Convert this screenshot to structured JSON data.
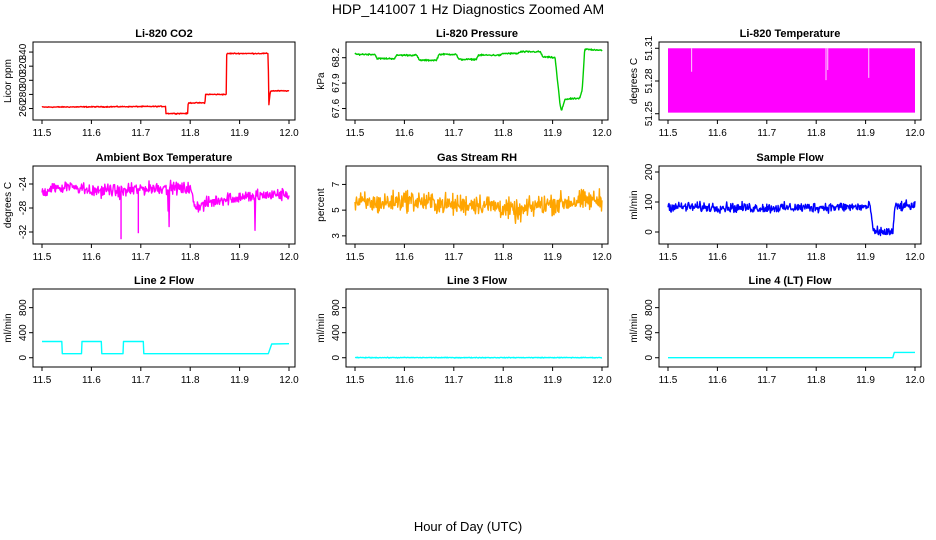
{
  "page": {
    "title": "HDP_141007  1 Hz Diagnostics Zoomed AM",
    "xlabel": "Hour of Day (UTC)"
  },
  "chart_data": [
    {
      "id": "co2",
      "type": "line",
      "title": "Li-820 CO2",
      "ylabel": "Licor ppm",
      "color": "#ff0000",
      "xlim": [
        11.5,
        12.0
      ],
      "ylim": [
        248,
        350
      ],
      "xticks": [
        11.5,
        11.6,
        11.7,
        11.8,
        11.9,
        12.0
      ],
      "yticks": [
        260,
        280,
        300,
        320,
        340
      ],
      "series": [
        {
          "name": "CO2",
          "noise": 0.6,
          "x": [
            11.5,
            11.75,
            11.751,
            11.795,
            11.796,
            11.83,
            11.831,
            11.873,
            11.874,
            11.958,
            11.959,
            11.962,
            11.965,
            12.0
          ],
          "y": [
            262,
            263,
            253,
            253,
            268,
            268,
            280,
            280,
            338,
            338,
            263,
            284,
            285,
            285
          ]
        }
      ]
    },
    {
      "id": "pressure",
      "type": "line",
      "title": "Li-820 Pressure",
      "ylabel": "kPa",
      "color": "#00cc00",
      "xlim": [
        11.5,
        12.0
      ],
      "ylim": [
        67.5,
        68.35
      ],
      "xticks": [
        11.5,
        11.6,
        11.7,
        11.8,
        11.9,
        12.0
      ],
      "yticks": [
        67.6,
        67.9,
        68.2
      ],
      "series": [
        {
          "name": "Pressure",
          "noise": 0.008,
          "x": [
            11.5,
            11.54,
            11.545,
            11.58,
            11.585,
            11.625,
            11.63,
            11.665,
            11.67,
            11.705,
            11.71,
            11.745,
            11.75,
            11.795,
            11.8,
            11.83,
            11.835,
            11.875,
            11.88,
            11.905,
            11.915,
            11.918,
            11.925,
            11.955,
            11.96,
            11.965,
            12.0
          ],
          "y": [
            68.24,
            68.24,
            68.19,
            68.19,
            68.23,
            68.23,
            68.17,
            68.17,
            68.24,
            68.24,
            68.18,
            68.18,
            68.23,
            68.23,
            68.25,
            68.25,
            68.27,
            68.27,
            68.21,
            68.2,
            67.65,
            67.57,
            67.71,
            67.72,
            67.82,
            68.3,
            68.29
          ]
        }
      ]
    },
    {
      "id": "licor_temp",
      "type": "line",
      "title": "Li-820 Temperature",
      "ylabel": "degrees C",
      "color": "#ff00ff",
      "xlim": [
        11.5,
        12.0
      ],
      "ylim": [
        51.247,
        51.313
      ],
      "xticks": [
        11.5,
        11.6,
        11.7,
        11.8,
        11.9,
        12.0
      ],
      "yticks": [
        51.25,
        51.28,
        51.31
      ],
      "series": [
        {
          "name": "Temperature",
          "style": "band",
          "low": 51.251,
          "high": 51.31,
          "x": [
            11.5,
            12.0
          ],
          "y": [
            51.251,
            51.31
          ]
        }
      ]
    },
    {
      "id": "box_temp",
      "type": "line",
      "title": "Ambient Box Temperature",
      "ylabel": "degrees C",
      "color": "#ff00ff",
      "xlim": [
        11.5,
        12.0
      ],
      "ylim": [
        -33.5,
        -21.5
      ],
      "xticks": [
        11.5,
        11.6,
        11.7,
        11.8,
        11.9,
        12.0
      ],
      "yticks": [
        -32,
        -28,
        -24
      ],
      "series": [
        {
          "name": "Box Temp",
          "noise": 0.9,
          "x": [
            11.5,
            11.52,
            11.55,
            11.58,
            11.6,
            11.64,
            11.66,
            11.7,
            11.75,
            11.8,
            11.81,
            11.83,
            11.86,
            11.9,
            11.95,
            12.0
          ],
          "y": [
            -25.5,
            -24.8,
            -24.2,
            -24.6,
            -25.2,
            -25.0,
            -25.4,
            -24.8,
            -24.6,
            -24.8,
            -27.8,
            -27.4,
            -26.6,
            -26.2,
            -25.9,
            -25.7
          ]
        }
      ]
    },
    {
      "id": "rh",
      "type": "line",
      "title": "Gas Stream RH",
      "ylabel": "percent",
      "color": "#ffa500",
      "xlim": [
        11.5,
        12.0
      ],
      "ylim": [
        2.6,
        8.2
      ],
      "xticks": [
        11.5,
        11.6,
        11.7,
        11.8,
        11.9,
        12.0
      ],
      "yticks": [
        3,
        5,
        7
      ],
      "series": [
        {
          "name": "RH",
          "noise": 0.7,
          "x": [
            11.5,
            11.55,
            11.6,
            11.65,
            11.7,
            11.75,
            11.8,
            11.83,
            11.87,
            11.9,
            11.95,
            12.0
          ],
          "y": [
            5.6,
            5.5,
            5.8,
            5.6,
            5.4,
            5.5,
            5.2,
            4.8,
            5.4,
            5.5,
            5.7,
            5.8
          ]
        }
      ]
    },
    {
      "id": "sample_flow",
      "type": "line",
      "title": "Sample Flow",
      "ylabel": "ml/min",
      "color": "#0000ff",
      "xlim": [
        11.5,
        12.0
      ],
      "ylim": [
        -30,
        210
      ],
      "xticks": [
        11.5,
        11.6,
        11.7,
        11.8,
        11.9,
        12.0
      ],
      "yticks": [
        0,
        100,
        200
      ],
      "series": [
        {
          "name": "Sample Flow",
          "noise": 14,
          "x": [
            11.5,
            11.6,
            11.7,
            11.8,
            11.91,
            11.915,
            11.955,
            11.96,
            12.0
          ],
          "y": [
            85,
            82,
            80,
            82,
            84,
            0,
            0,
            85,
            87
          ]
        }
      ]
    },
    {
      "id": "line2",
      "type": "line",
      "title": "Line 2 Flow",
      "ylabel": "ml/min",
      "color": "#00ffff",
      "xlim": [
        11.5,
        12.0
      ],
      "ylim": [
        -100,
        1050
      ],
      "xticks": [
        11.5,
        11.6,
        11.7,
        11.8,
        11.9,
        12.0
      ],
      "yticks": [
        0,
        400,
        800
      ],
      "series": [
        {
          "name": "Line 2",
          "noise": 0,
          "x": [
            11.5,
            11.54,
            11.541,
            11.58,
            11.581,
            11.62,
            11.621,
            11.664,
            11.665,
            11.705,
            11.706,
            11.958,
            11.965,
            12.0
          ],
          "y": [
            260,
            260,
            65,
            65,
            260,
            260,
            65,
            65,
            260,
            260,
            65,
            65,
            220,
            225
          ]
        }
      ]
    },
    {
      "id": "line3",
      "type": "line",
      "title": "Line 3 Flow",
      "ylabel": "ml/min",
      "color": "#00ffff",
      "xlim": [
        11.5,
        12.0
      ],
      "ylim": [
        -100,
        1050
      ],
      "xticks": [
        11.5,
        11.6,
        11.7,
        11.8,
        11.9,
        12.0
      ],
      "yticks": [
        0,
        400,
        800
      ],
      "series": [
        {
          "name": "Line 3",
          "noise": 5,
          "x": [
            11.5,
            12.0
          ],
          "y": [
            2,
            2
          ]
        }
      ]
    },
    {
      "id": "line4",
      "type": "line",
      "title": "Line 4 (LT) Flow",
      "ylabel": "ml/min",
      "color": "#00ffff",
      "xlim": [
        11.5,
        12.0
      ],
      "ylim": [
        -100,
        1050
      ],
      "xticks": [
        11.5,
        11.6,
        11.7,
        11.8,
        11.9,
        12.0
      ],
      "yticks": [
        0,
        400,
        800
      ],
      "series": [
        {
          "name": "Line 4 (LT)",
          "noise": 0,
          "x": [
            11.5,
            11.955,
            11.958,
            12.0
          ],
          "y": [
            0,
            0,
            85,
            85
          ]
        }
      ]
    }
  ]
}
